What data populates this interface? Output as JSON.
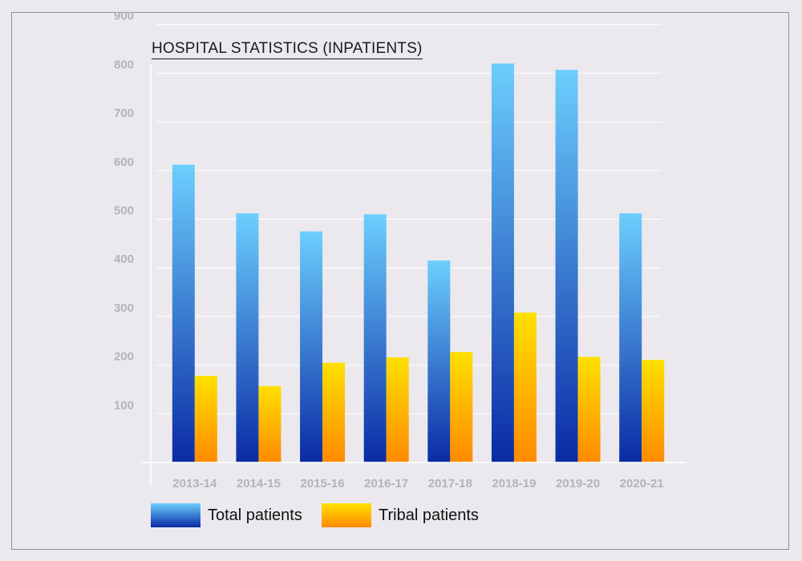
{
  "chart_data": {
    "type": "bar",
    "title": "HOSPITAL STATISTICS (INPATIENTS)",
    "categories": [
      "2013-14",
      "2014-15",
      "2015-16",
      "2016-17",
      "2017-18",
      "2018-19",
      "2019-20",
      "2020-21"
    ],
    "series": [
      {
        "name": "Total patients",
        "values": [
          612,
          512,
          475,
          510,
          415,
          820,
          807,
          512
        ],
        "color_top": "#6ccffd",
        "color_bottom": "#0a2aa4"
      },
      {
        "name": "Tribal patients",
        "values": [
          178,
          157,
          205,
          216,
          227,
          308,
          217,
          211
        ],
        "color_top": "#ffe000",
        "color_bottom": "#ff8a00"
      }
    ],
    "yticks": [
      "900",
      "800",
      "700",
      "600",
      "500",
      "400",
      "300",
      "200",
      "100"
    ],
    "xlabel": "",
    "ylabel": "",
    "ylim": [
      0,
      900
    ],
    "grid": true,
    "legend_position": "bottom-left"
  }
}
